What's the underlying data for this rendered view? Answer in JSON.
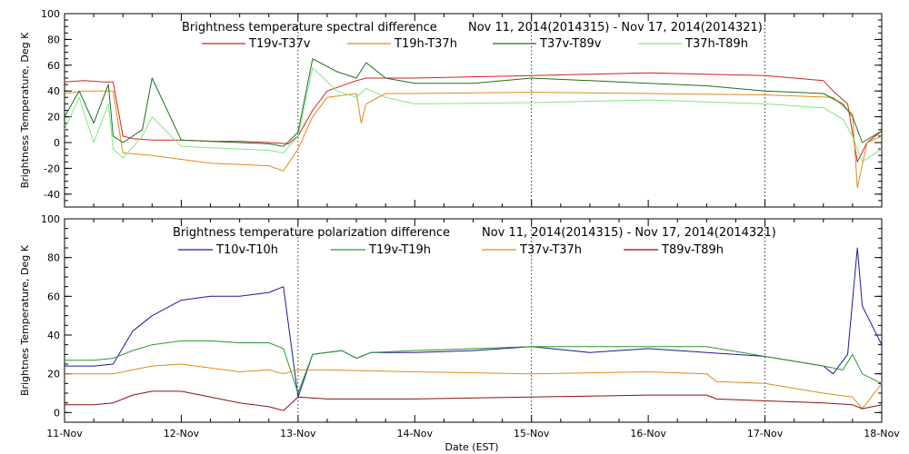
{
  "xlabel": "Date (EST)",
  "chart_data": [
    {
      "type": "line",
      "title": "Brightness temperature spectral difference",
      "date_range_label": "Nov 11, 2014(2014315) - Nov 17, 2014(2014321)",
      "ylabel": "Brightness Temperature, Deg K",
      "xlabel": "",
      "ylim": [
        -50,
        100
      ],
      "yticks": [
        "-40",
        "-20",
        "0",
        "20",
        "40",
        "60",
        "80",
        "100"
      ],
      "x_tick_labels": [],
      "xlim": [
        "2014-11-11",
        "2014-11-18"
      ],
      "vertical_grid_dates": [
        "2014-11-13",
        "2014-11-15",
        "2014-11-17"
      ],
      "legend_placement": "top",
      "series": [
        {
          "name": "T19v-T37v",
          "color": "#d42020",
          "x": [
            "2014-11-11T00:00",
            "2014-11-11T04:00",
            "2014-11-11T08:00",
            "2014-11-11T10:00",
            "2014-11-11T12:00",
            "2014-11-11T14:00",
            "2014-11-11T18:00",
            "2014-11-12T00:00",
            "2014-11-12T06:00",
            "2014-11-12T12:00",
            "2014-11-12T18:00",
            "2014-11-12T22:00",
            "2014-11-13T00:00",
            "2014-11-13T03:00",
            "2014-11-13T06:00",
            "2014-11-13T12:00",
            "2014-11-13T14:00",
            "2014-11-13T16:00",
            "2014-11-14T00:00",
            "2014-11-14T12:00",
            "2014-11-15T00:00",
            "2014-11-15T12:00",
            "2014-11-16T00:00",
            "2014-11-16T12:00",
            "2014-11-17T00:00",
            "2014-11-17T12:00",
            "2014-11-17T14:00",
            "2014-11-17T17:00",
            "2014-11-17T19:00",
            "2014-11-17T21:00",
            "2014-11-18T00:00"
          ],
          "y": [
            47,
            48,
            47,
            47,
            5,
            3,
            2,
            2,
            1,
            1,
            0,
            -1,
            5,
            25,
            40,
            48,
            50,
            50,
            50,
            51,
            52,
            53,
            54,
            53,
            52,
            48,
            40,
            30,
            -15,
            0,
            9
          ]
        },
        {
          "name": "T19h-T37h",
          "color": "#e08a18",
          "x": [
            "2014-11-11T00:00",
            "2014-11-11T04:00",
            "2014-11-11T08:00",
            "2014-11-11T10:00",
            "2014-11-11T12:00",
            "2014-11-11T18:00",
            "2014-11-12T00:00",
            "2014-11-12T06:00",
            "2014-11-12T12:00",
            "2014-11-12T18:00",
            "2014-11-12T21:00",
            "2014-11-13T00:00",
            "2014-11-13T03:00",
            "2014-11-13T06:00",
            "2014-11-13T12:00",
            "2014-11-13T13:00",
            "2014-11-13T14:00",
            "2014-11-13T18:00",
            "2014-11-14T00:00",
            "2014-11-15T00:00",
            "2014-11-16T00:00",
            "2014-11-17T00:00",
            "2014-11-17T14:00",
            "2014-11-17T18:00",
            "2014-11-17T19:00",
            "2014-11-17T21:00",
            "2014-11-18T00:00"
          ],
          "y": [
            38,
            40,
            40,
            40,
            -8,
            -10,
            -13,
            -16,
            -17,
            -18,
            -22,
            -5,
            20,
            35,
            38,
            15,
            30,
            38,
            38,
            39,
            38,
            37,
            35,
            22,
            -35,
            0,
            5
          ]
        },
        {
          "name": "T37v-T89v",
          "color": "#1e6e1e",
          "x": [
            "2014-11-11T00:00",
            "2014-11-11T03:00",
            "2014-11-11T06:00",
            "2014-11-11T09:00",
            "2014-11-11T10:00",
            "2014-11-11T12:00",
            "2014-11-11T16:00",
            "2014-11-11T18:00",
            "2014-11-12T00:00",
            "2014-11-12T12:00",
            "2014-11-12T18:00",
            "2014-11-12T21:00",
            "2014-11-13T00:00",
            "2014-11-13T03:00",
            "2014-11-13T08:00",
            "2014-11-13T12:00",
            "2014-11-13T14:00",
            "2014-11-13T18:00",
            "2014-11-14T00:00",
            "2014-11-14T12:00",
            "2014-11-15T00:00",
            "2014-11-15T12:00",
            "2014-11-16T00:00",
            "2014-11-16T12:00",
            "2014-11-17T00:00",
            "2014-11-17T12:00",
            "2014-11-17T16:00",
            "2014-11-17T18:00",
            "2014-11-17T20:00",
            "2014-11-18T00:00"
          ],
          "y": [
            20,
            40,
            15,
            45,
            5,
            0,
            10,
            50,
            2,
            0,
            -1,
            -3,
            8,
            65,
            55,
            50,
            62,
            50,
            46,
            46,
            50,
            48,
            46,
            44,
            40,
            38,
            30,
            20,
            0,
            9
          ]
        },
        {
          "name": "T37h-T89h",
          "color": "#80e880",
          "x": [
            "2014-11-11T00:00",
            "2014-11-11T03:00",
            "2014-11-11T06:00",
            "2014-11-11T09:00",
            "2014-11-11T10:00",
            "2014-11-11T12:00",
            "2014-11-11T16:00",
            "2014-11-11T18:00",
            "2014-11-12T00:00",
            "2014-11-12T12:00",
            "2014-11-12T18:00",
            "2014-11-12T21:00",
            "2014-11-13T00:00",
            "2014-11-13T03:00",
            "2014-11-13T08:00",
            "2014-11-13T12:00",
            "2014-11-13T14:00",
            "2014-11-13T18:00",
            "2014-11-14T00:00",
            "2014-11-15T00:00",
            "2014-11-16T00:00",
            "2014-11-17T00:00",
            "2014-11-17T12:00",
            "2014-11-17T16:00",
            "2014-11-17T18:00",
            "2014-11-17T20:00",
            "2014-11-18T00:00"
          ],
          "y": [
            10,
            35,
            0,
            30,
            -5,
            -12,
            5,
            20,
            -3,
            -5,
            -6,
            -8,
            5,
            58,
            40,
            35,
            42,
            35,
            30,
            31,
            33,
            30,
            27,
            18,
            5,
            -15,
            -5
          ]
        }
      ]
    },
    {
      "type": "line",
      "title": "Brightness temperature polarization difference",
      "date_range_label": "Nov 11, 2014(2014315) - Nov 17, 2014(2014321)",
      "ylabel": "Brightnes Temperature, Deg K",
      "xlabel": "Date (EST)",
      "ylim": [
        -5,
        100
      ],
      "yticks": [
        "0",
        "20",
        "40",
        "60",
        "80",
        "100"
      ],
      "x_tick_labels": [
        "11-Nov",
        "12-Nov",
        "13-Nov",
        "14-Nov",
        "15-Nov",
        "16-Nov",
        "17-Nov",
        "18-Nov"
      ],
      "xlim": [
        "2014-11-11",
        "2014-11-18"
      ],
      "vertical_grid_dates": [
        "2014-11-13",
        "2014-11-15",
        "2014-11-17"
      ],
      "legend_placement": "top",
      "series": [
        {
          "name": "T10v-T10h",
          "color": "#1a1a99",
          "x": [
            "2014-11-11T00:00",
            "2014-11-11T06:00",
            "2014-11-11T10:00",
            "2014-11-11T14:00",
            "2014-11-11T18:00",
            "2014-11-12T00:00",
            "2014-11-12T06:00",
            "2014-11-12T12:00",
            "2014-11-12T18:00",
            "2014-11-12T21:00",
            "2014-11-13T00:00",
            "2014-11-13T03:00",
            "2014-11-13T09:00",
            "2014-11-13T12:00",
            "2014-11-13T15:00",
            "2014-11-14T00:00",
            "2014-11-14T12:00",
            "2014-11-15T00:00",
            "2014-11-15T12:00",
            "2014-11-16T00:00",
            "2014-11-16T12:00",
            "2014-11-17T00:00",
            "2014-11-17T12:00",
            "2014-11-17T14:00",
            "2014-11-17T17:00",
            "2014-11-17T19:00",
            "2014-11-17T20:00",
            "2014-11-18T00:00"
          ],
          "y": [
            24,
            24,
            25,
            42,
            50,
            58,
            60,
            60,
            62,
            65,
            8,
            30,
            32,
            28,
            31,
            31,
            32,
            34,
            31,
            33,
            31,
            29,
            24,
            20,
            30,
            85,
            55,
            35
          ]
        },
        {
          "name": "T19v-T19h",
          "color": "#2a9a2a",
          "x": [
            "2014-11-11T00:00",
            "2014-11-11T06:00",
            "2014-11-11T10:00",
            "2014-11-11T14:00",
            "2014-11-11T18:00",
            "2014-11-12T00:00",
            "2014-11-12T06:00",
            "2014-11-12T12:00",
            "2014-11-12T18:00",
            "2014-11-12T21:00",
            "2014-11-13T00:00",
            "2014-11-13T03:00",
            "2014-11-13T09:00",
            "2014-11-13T12:00",
            "2014-11-13T15:00",
            "2014-11-14T00:00",
            "2014-11-15T00:00",
            "2014-11-16T00:00",
            "2014-11-16T12:00",
            "2014-11-17T00:00",
            "2014-11-17T12:00",
            "2014-11-17T16:00",
            "2014-11-17T18:00",
            "2014-11-17T20:00",
            "2014-11-18T00:00"
          ],
          "y": [
            27,
            27,
            28,
            32,
            35,
            37,
            37,
            36,
            36,
            33,
            10,
            30,
            32,
            28,
            31,
            32,
            34,
            34,
            34,
            29,
            24,
            22,
            30,
            20,
            15
          ]
        },
        {
          "name": "T37v-T37h",
          "color": "#e08a18",
          "x": [
            "2014-11-11T00:00",
            "2014-11-11T06:00",
            "2014-11-11T10:00",
            "2014-11-11T14:00",
            "2014-11-11T18:00",
            "2014-11-12T00:00",
            "2014-11-12T06:00",
            "2014-11-12T12:00",
            "2014-11-12T18:00",
            "2014-11-12T21:00",
            "2014-11-13T00:00",
            "2014-11-13T06:00",
            "2014-11-14T00:00",
            "2014-11-15T00:00",
            "2014-11-16T00:00",
            "2014-11-16T12:00",
            "2014-11-16T14:00",
            "2014-11-17T00:00",
            "2014-11-17T12:00",
            "2014-11-17T18:00",
            "2014-11-17T20:00",
            "2014-11-18T00:00"
          ],
          "y": [
            20,
            20,
            20,
            22,
            24,
            25,
            23,
            21,
            22,
            20,
            22,
            22,
            21,
            20,
            21,
            20,
            16,
            15,
            10,
            8,
            2,
            15
          ]
        },
        {
          "name": "T89v-T89h",
          "color": "#8b1010",
          "x": [
            "2014-11-11T00:00",
            "2014-11-11T06:00",
            "2014-11-11T10:00",
            "2014-11-11T14:00",
            "2014-11-11T18:00",
            "2014-11-12T00:00",
            "2014-11-12T06:00",
            "2014-11-12T12:00",
            "2014-11-12T18:00",
            "2014-11-12T21:00",
            "2014-11-13T00:00",
            "2014-11-13T06:00",
            "2014-11-14T00:00",
            "2014-11-15T00:00",
            "2014-11-16T00:00",
            "2014-11-16T12:00",
            "2014-11-16T14:00",
            "2014-11-17T00:00",
            "2014-11-17T12:00",
            "2014-11-17T18:00",
            "2014-11-17T20:00",
            "2014-11-18T00:00"
          ],
          "y": [
            4,
            4,
            5,
            9,
            11,
            11,
            8,
            5,
            3,
            1,
            8,
            7,
            7,
            8,
            9,
            9,
            7,
            6,
            5,
            4,
            2,
            4
          ]
        }
      ]
    }
  ]
}
